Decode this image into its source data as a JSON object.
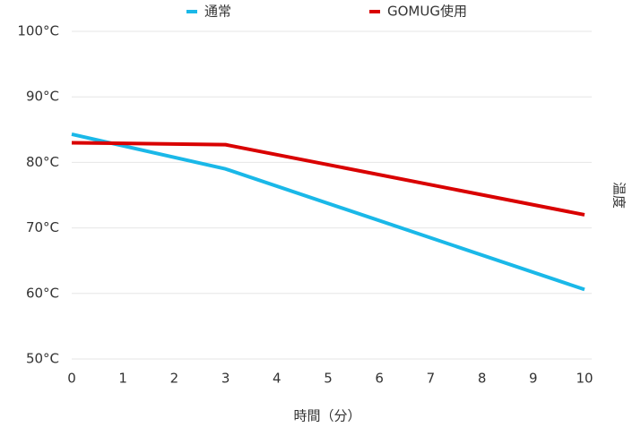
{
  "chart_data": {
    "type": "line",
    "x_label": "時間（分）",
    "y_label": "温度",
    "x": [
      0,
      3,
      10
    ],
    "series": [
      {
        "name": "通常",
        "color": "#1ab8e8",
        "values": [
          84.3,
          79.0,
          60.6
        ]
      },
      {
        "name": "GOMUG使用",
        "color": "#d90000",
        "values": [
          83.0,
          82.7,
          72.0
        ]
      }
    ],
    "xlim": [
      0,
      10
    ],
    "xticks": [
      0,
      1,
      2,
      3,
      4,
      5,
      6,
      7,
      8,
      9,
      10
    ],
    "ylim": [
      50,
      100
    ],
    "yticks": [
      {
        "value": 50,
        "label": "50°C"
      },
      {
        "value": 60,
        "label": "60°C"
      },
      {
        "value": 70,
        "label": "70°C"
      },
      {
        "value": 80,
        "label": "80°C"
      },
      {
        "value": 90,
        "label": "90°C"
      },
      {
        "value": 100,
        "label": "100°C"
      }
    ],
    "grid": true,
    "legend": "top"
  }
}
